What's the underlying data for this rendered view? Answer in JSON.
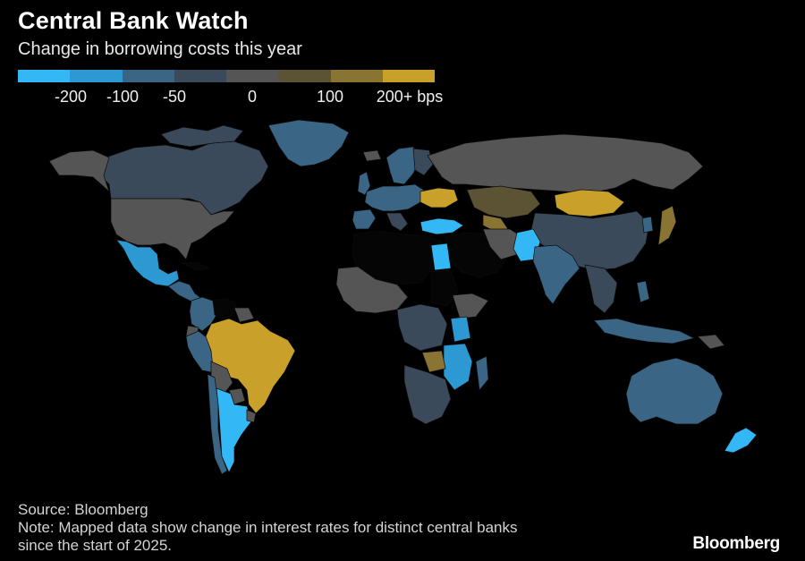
{
  "title": "Central Bank Watch",
  "subtitle": "Change in borrowing costs this year",
  "legend": {
    "colors": [
      "#33b8f5",
      "#2d99d2",
      "#3a6584",
      "#3a4a5a",
      "#555555",
      "#5c5335",
      "#8a7433",
      "#c9a02a"
    ],
    "labels": [
      "-200",
      "-100",
      "-50",
      "0",
      "100",
      "200+ bps"
    ]
  },
  "categories": {
    "cut_200": "#33b8f5",
    "cut_100": "#2d99d2",
    "cut_50": "#3a6584",
    "cut_small": "#3a4a5a",
    "nochange": "#555555",
    "hike_100": "#5c5335",
    "hike_150": "#8a7433",
    "hike_200": "#c9a02a",
    "nodata": "#050505"
  },
  "footer": {
    "source": "Source: Bloomberg",
    "note_line1": "Note: Mapped data show change in interest rates for distinct central banks",
    "note_line2": "since the start of 2025."
  },
  "brand": "Bloomberg"
}
